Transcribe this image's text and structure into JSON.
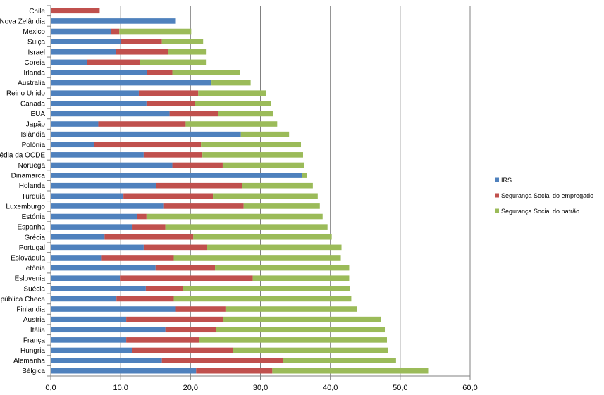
{
  "chart_data": {
    "type": "bar",
    "orientation": "horizontal",
    "stacked": true,
    "categories": [
      "Chile",
      "Nova Zelândia",
      "Mexico",
      "Suiça",
      "Israel",
      "Coreia",
      "Irlanda",
      "Australia",
      "Reino Unido",
      "Canada",
      "EUA",
      "Japão",
      "Islândia",
      "Polónia",
      "Média da OCDE",
      "Noruega",
      "Dinamarca",
      "Holanda",
      "Turquia",
      "Luxemburgo",
      "Estónia",
      "Espanha",
      "Grécia",
      "Portugal",
      "Eslováquia",
      "Letónia",
      "Eslovenia",
      "Suécia",
      "República Checa",
      "Finlandia",
      "Austria",
      "Itália",
      "França",
      "Hungria",
      "Alemanha",
      "Bélgica"
    ],
    "series": [
      {
        "name": "IRS",
        "color": "#4f81bd",
        "values": [
          0,
          17.9,
          8.6,
          10.0,
          9.3,
          5.2,
          13.8,
          23.0,
          12.6,
          13.7,
          17.0,
          6.8,
          27.2,
          6.2,
          13.3,
          17.4,
          36.0,
          15.1,
          10.4,
          16.1,
          12.4,
          11.7,
          7.7,
          13.3,
          7.3,
          15.0,
          9.9,
          13.6,
          9.4,
          17.9,
          10.8,
          16.4,
          10.8,
          11.6,
          15.9,
          20.8
        ]
      },
      {
        "name": "Segurança Social do empregado",
        "color": "#c0504d",
        "values": [
          7.0,
          0,
          1.2,
          5.9,
          7.5,
          7.6,
          3.6,
          0,
          8.5,
          6.9,
          7.0,
          12.5,
          0,
          15.3,
          8.4,
          7.2,
          0,
          12.3,
          12.8,
          11.5,
          1.3,
          4.7,
          12.7,
          9.0,
          10.3,
          8.5,
          19.0,
          5.3,
          8.2,
          7.1,
          13.9,
          7.2,
          10.4,
          14.5,
          17.3,
          10.9
        ]
      },
      {
        "name": "Segurança Social do patrão",
        "color": "#9bbb59",
        "values": [
          0,
          0,
          10.3,
          5.9,
          5.4,
          9.4,
          9.7,
          5.6,
          9.7,
          10.9,
          7.8,
          13.1,
          6.9,
          14.3,
          14.4,
          11.7,
          0.7,
          10.1,
          15.0,
          10.9,
          25.2,
          23.2,
          19.8,
          19.3,
          23.9,
          19.2,
          13.8,
          23.9,
          25.4,
          18.8,
          22.5,
          24.2,
          26.9,
          22.2,
          16.2,
          22.3
        ]
      }
    ],
    "xlim": [
      0,
      60
    ],
    "xticks": [
      "0,0",
      "10,0",
      "20,0",
      "30,0",
      "40,0",
      "50,0",
      "60,0"
    ],
    "xtick_values": [
      0,
      10,
      20,
      30,
      40,
      50,
      60
    ],
    "grid": true,
    "legend_position": "right",
    "title": "",
    "xlabel": "",
    "ylabel": ""
  }
}
